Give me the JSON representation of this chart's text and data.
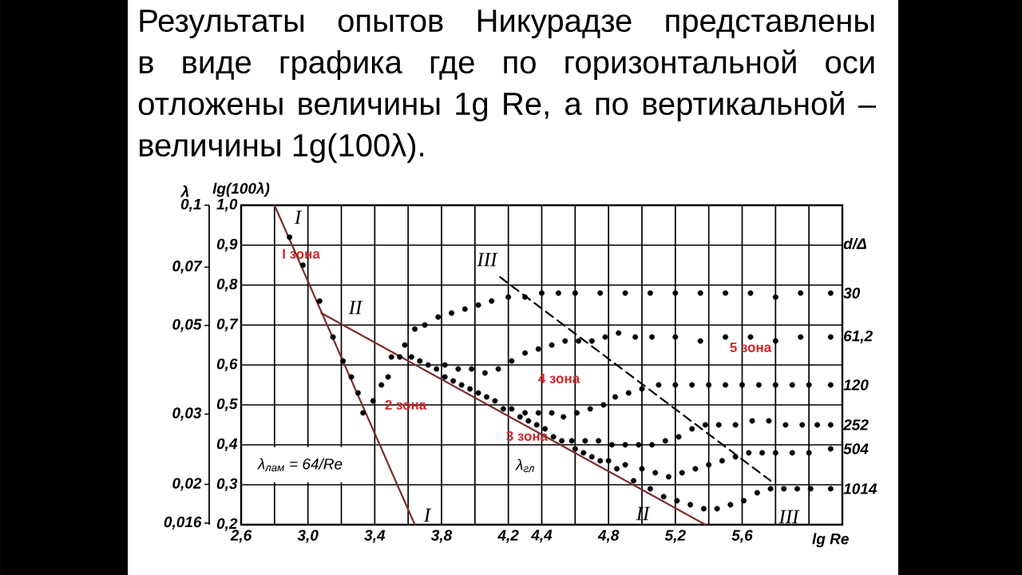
{
  "chart_data": {
    "type": "scatter",
    "title": "Результаты опытов Никурадзе представлены в виде графика где по горизонтальной оси отложены величины 1g Re, а по вертикальной – величины 1g(100λ).",
    "xlabel": "lg Re",
    "ylabel": "lg(100λ)",
    "y2label": "λ",
    "legend_title": "d/Δ",
    "xlim": [
      2.6,
      6.2
    ],
    "xticks": [
      {
        "value": 2.6,
        "label": "2,6"
      },
      {
        "value": 2.8,
        "label": null
      },
      {
        "value": 3.0,
        "label": "3,0"
      },
      {
        "value": 3.2,
        "label": null
      },
      {
        "value": 3.4,
        "label": "3,4"
      },
      {
        "value": 3.6,
        "label": null
      },
      {
        "value": 3.8,
        "label": "3,8"
      },
      {
        "value": 4.0,
        "label": null
      },
      {
        "value": 4.2,
        "label": "4,2"
      },
      {
        "value": 4.4,
        "label": "4,4"
      },
      {
        "value": 4.6,
        "label": null
      },
      {
        "value": 4.8,
        "label": "4,8"
      },
      {
        "value": 5.0,
        "label": null
      },
      {
        "value": 5.2,
        "label": "5,2"
      },
      {
        "value": 5.4,
        "label": null
      },
      {
        "value": 5.6,
        "label": "5,6"
      },
      {
        "value": 5.8,
        "label": null
      },
      {
        "value": 6.0,
        "label": null
      },
      {
        "value": 6.2,
        "label": null
      }
    ],
    "ylim": [
      0.2,
      1.0
    ],
    "yticks": [
      {
        "value": 0.2,
        "label": "0,2"
      },
      {
        "value": 0.3,
        "label": "0,3"
      },
      {
        "value": 0.4,
        "label": "0,4"
      },
      {
        "value": 0.5,
        "label": "0,5"
      },
      {
        "value": 0.6,
        "label": "0,6"
      },
      {
        "value": 0.7,
        "label": "0,7"
      },
      {
        "value": 0.8,
        "label": "0,8"
      },
      {
        "value": 0.9,
        "label": "0,9"
      },
      {
        "value": 1.0,
        "label": "1,0"
      }
    ],
    "y2lim": [
      0.01585,
      0.1
    ],
    "y2ticks": [
      {
        "value": 0.1,
        "label": "0,1"
      },
      {
        "value": 0.07,
        "label": "0,07"
      },
      {
        "value": 0.05,
        "label": "0,05"
      },
      {
        "value": 0.03,
        "label": "0,03"
      },
      {
        "value": 0.02,
        "label": "0,02"
      },
      {
        "value": 0.016,
        "label": "0,016"
      }
    ],
    "log": "y2",
    "grid": true,
    "marker": "circle",
    "series": [
      {
        "name": "30",
        "color": "#000000",
        "x": [
          3.33,
          3.39,
          3.44,
          3.5,
          3.58,
          3.64,
          3.7,
          3.78,
          3.86,
          3.94,
          4.02,
          4.1,
          4.2,
          4.3,
          4.4,
          4.5,
          4.6,
          4.75,
          4.9,
          5.05,
          5.2,
          5.35,
          5.5,
          5.65,
          5.8,
          5.95,
          6.13
        ],
        "values": [
          0.48,
          0.51,
          0.55,
          0.62,
          0.65,
          0.69,
          0.7,
          0.72,
          0.73,
          0.74,
          0.75,
          0.76,
          0.77,
          0.77,
          0.78,
          0.78,
          0.78,
          0.78,
          0.78,
          0.78,
          0.78,
          0.78,
          0.78,
          0.78,
          0.77,
          0.78,
          0.78
        ]
      },
      {
        "name": "61,2",
        "color": "#000000",
        "x": [
          3.48,
          3.55,
          3.82,
          3.9,
          3.98,
          4.06,
          4.14,
          4.22,
          4.3,
          4.38,
          4.46,
          4.54,
          4.62,
          4.7,
          4.78,
          4.86,
          4.96,
          5.06,
          5.2,
          5.35,
          5.5,
          5.65,
          5.8,
          5.95,
          6.13
        ],
        "values": [
          0.57,
          0.62,
          0.6,
          0.59,
          0.59,
          0.58,
          0.59,
          0.61,
          0.63,
          0.64,
          0.65,
          0.66,
          0.66,
          0.66,
          0.67,
          0.68,
          0.67,
          0.67,
          0.67,
          0.66,
          0.67,
          0.67,
          0.66,
          0.67,
          0.67
        ]
      },
      {
        "name": "120",
        "color": "#000000",
        "x": [
          3.62,
          3.82,
          4.02,
          4.22,
          4.3,
          4.38,
          4.46,
          4.53,
          4.61,
          4.69,
          4.77,
          4.84,
          4.92,
          5.0,
          5.1,
          5.2,
          5.3,
          5.4,
          5.5,
          5.6,
          5.7,
          5.8,
          5.9,
          6.0,
          6.13
        ],
        "values": [
          0.62,
          0.57,
          0.53,
          0.49,
          0.48,
          0.48,
          0.48,
          0.47,
          0.48,
          0.49,
          0.5,
          0.52,
          0.53,
          0.54,
          0.55,
          0.55,
          0.55,
          0.55,
          0.55,
          0.55,
          0.55,
          0.55,
          0.55,
          0.55,
          0.55
        ]
      },
      {
        "name": "252",
        "color": "#000000",
        "x": [
          3.67,
          3.87,
          4.07,
          4.27,
          4.42,
          4.58,
          4.66,
          4.74,
          4.82,
          4.9,
          4.98,
          5.06,
          5.14,
          5.22,
          5.3,
          5.38,
          5.46,
          5.56,
          5.66,
          5.76,
          5.86,
          5.96,
          6.05,
          6.13
        ],
        "values": [
          0.61,
          0.56,
          0.52,
          0.47,
          0.44,
          0.41,
          0.41,
          0.41,
          0.4,
          0.4,
          0.4,
          0.4,
          0.41,
          0.42,
          0.44,
          0.45,
          0.45,
          0.45,
          0.46,
          0.46,
          0.45,
          0.45,
          0.45,
          0.45
        ]
      },
      {
        "name": "504",
        "color": "#000000",
        "x": [
          3.72,
          3.92,
          4.12,
          4.32,
          4.47,
          4.6,
          4.7,
          4.8,
          4.9,
          5.0,
          5.08,
          5.16,
          5.24,
          5.32,
          5.4,
          5.48,
          5.56,
          5.64,
          5.72,
          5.8,
          5.9,
          6.0,
          6.13
        ],
        "values": [
          0.6,
          0.55,
          0.51,
          0.46,
          0.42,
          0.39,
          0.37,
          0.36,
          0.35,
          0.34,
          0.33,
          0.32,
          0.33,
          0.34,
          0.35,
          0.36,
          0.37,
          0.38,
          0.38,
          0.38,
          0.38,
          0.38,
          0.39
        ]
      },
      {
        "name": "1014",
        "color": "#000000",
        "x": [
          3.77,
          3.97,
          4.17,
          4.37,
          4.52,
          4.65,
          4.75,
          4.85,
          4.95,
          5.05,
          5.13,
          5.21,
          5.29,
          5.37,
          5.45,
          5.53,
          5.61,
          5.69,
          5.77,
          5.85,
          5.93,
          6.01,
          6.13
        ],
        "values": [
          0.59,
          0.54,
          0.49,
          0.45,
          0.41,
          0.38,
          0.36,
          0.34,
          0.31,
          0.29,
          0.27,
          0.26,
          0.25,
          0.24,
          0.24,
          0.25,
          0.26,
          0.28,
          0.29,
          0.29,
          0.29,
          0.29,
          0.29
        ]
      },
      {
        "color": "#000000",
        "x": [
          2.89,
          2.97,
          3.07,
          3.15,
          3.21,
          3.26,
          3.3
        ],
        "values": [
          0.92,
          0.85,
          0.76,
          0.67,
          0.61,
          0.57,
          0.53
        ]
      },
      {
        "type": "line",
        "marker": "none",
        "line_style": "solid",
        "color": "#7b2d2d",
        "x": [
          2.8,
          3.64
        ],
        "values": [
          1.0,
          0.2
        ]
      },
      {
        "type": "line",
        "marker": "none",
        "line_style": "solid",
        "color": "#7b2d2d",
        "x": [
          3.08,
          5.38
        ],
        "values": [
          0.73,
          0.2
        ]
      },
      {
        "type": "line",
        "marker": "none",
        "line_style": "dashed",
        "color": "#000000",
        "x": [
          4.15,
          5.77
        ],
        "values": [
          0.82,
          0.31
        ]
      }
    ],
    "annotations": [
      "I зона",
      "2 зона",
      "3 зона",
      "4 зона",
      "5 зона",
      "I",
      "I",
      "II",
      "II",
      "III",
      "III",
      "λ$_{лам}$ = 64/Re",
      "λ$_{гл}$"
    ]
  }
}
